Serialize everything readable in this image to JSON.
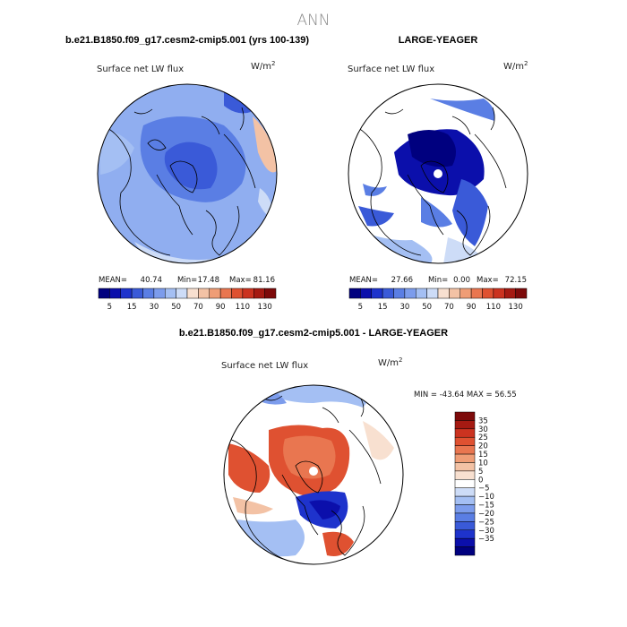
{
  "page": {
    "title": "ANN"
  },
  "colors": {
    "cb1": [
      "#00007f",
      "#0b0fab",
      "#1e33cc",
      "#3a5ad8",
      "#5a7ee4",
      "#7c9cec",
      "#a4bff3",
      "#cddcf7",
      "#f8e0d0",
      "#f3c2a5",
      "#ef9d76",
      "#e97650",
      "#df5131",
      "#cb3320",
      "#a51a12",
      "#7d0a0a"
    ],
    "cb2": [
      "#00007f",
      "#0b0fab",
      "#1e33cc",
      "#3a5ad8",
      "#5a7ee4",
      "#7c9cec",
      "#a4bff3",
      "#cddcf7",
      "#ffffff",
      "#f8e0d0",
      "#f3c2a5",
      "#ef9d76",
      "#e97650",
      "#df5131",
      "#cb3320",
      "#a51a12",
      "#7d0a0a"
    ]
  },
  "chart_data": [
    {
      "type": "heatmap",
      "projection": "north-polar-stereographic",
      "title": "b.e21.B1850.f09_g17.cesm2-cmip5.001 (yrs 100-139)",
      "subtitle": "Surface net LW flux",
      "units": "W/m",
      "units_sup": "2",
      "stats": {
        "mean_label": "MEAN=",
        "mean": "40.74",
        "min_label": "Min=",
        "min": "17.48",
        "max_label": "Max=",
        "max": "81.16"
      },
      "colorbar_ticks": [
        "5",
        "15",
        "30",
        "50",
        "70",
        "90",
        "110",
        "130"
      ]
    },
    {
      "type": "heatmap",
      "projection": "north-polar-stereographic",
      "title": "LARGE-YEAGER",
      "subtitle": "Surface net LW flux",
      "units": "W/m",
      "units_sup": "2",
      "stats": {
        "mean_label": "MEAN=",
        "mean": "27.66",
        "min_label": "Min=",
        "min": "0.00",
        "max_label": "Max=",
        "max": "72.15"
      },
      "colorbar_ticks": [
        "5",
        "15",
        "30",
        "50",
        "70",
        "90",
        "110",
        "130"
      ]
    },
    {
      "type": "heatmap",
      "projection": "north-polar-stereographic",
      "title": "b.e21.B1850.f09_g17.cesm2-cmip5.001 - LARGE-YEAGER",
      "subtitle": "Surface net LW flux",
      "units": "W/m",
      "units_sup": "2",
      "minmax": "MIN = -43.64 MAX =  56.55",
      "colorbar_ticks": [
        "35",
        "30",
        "25",
        "20",
        "15",
        "10",
        "5",
        "0",
        "−5",
        "−10",
        "−15",
        "−20",
        "−25",
        "−30",
        "−35"
      ]
    }
  ]
}
